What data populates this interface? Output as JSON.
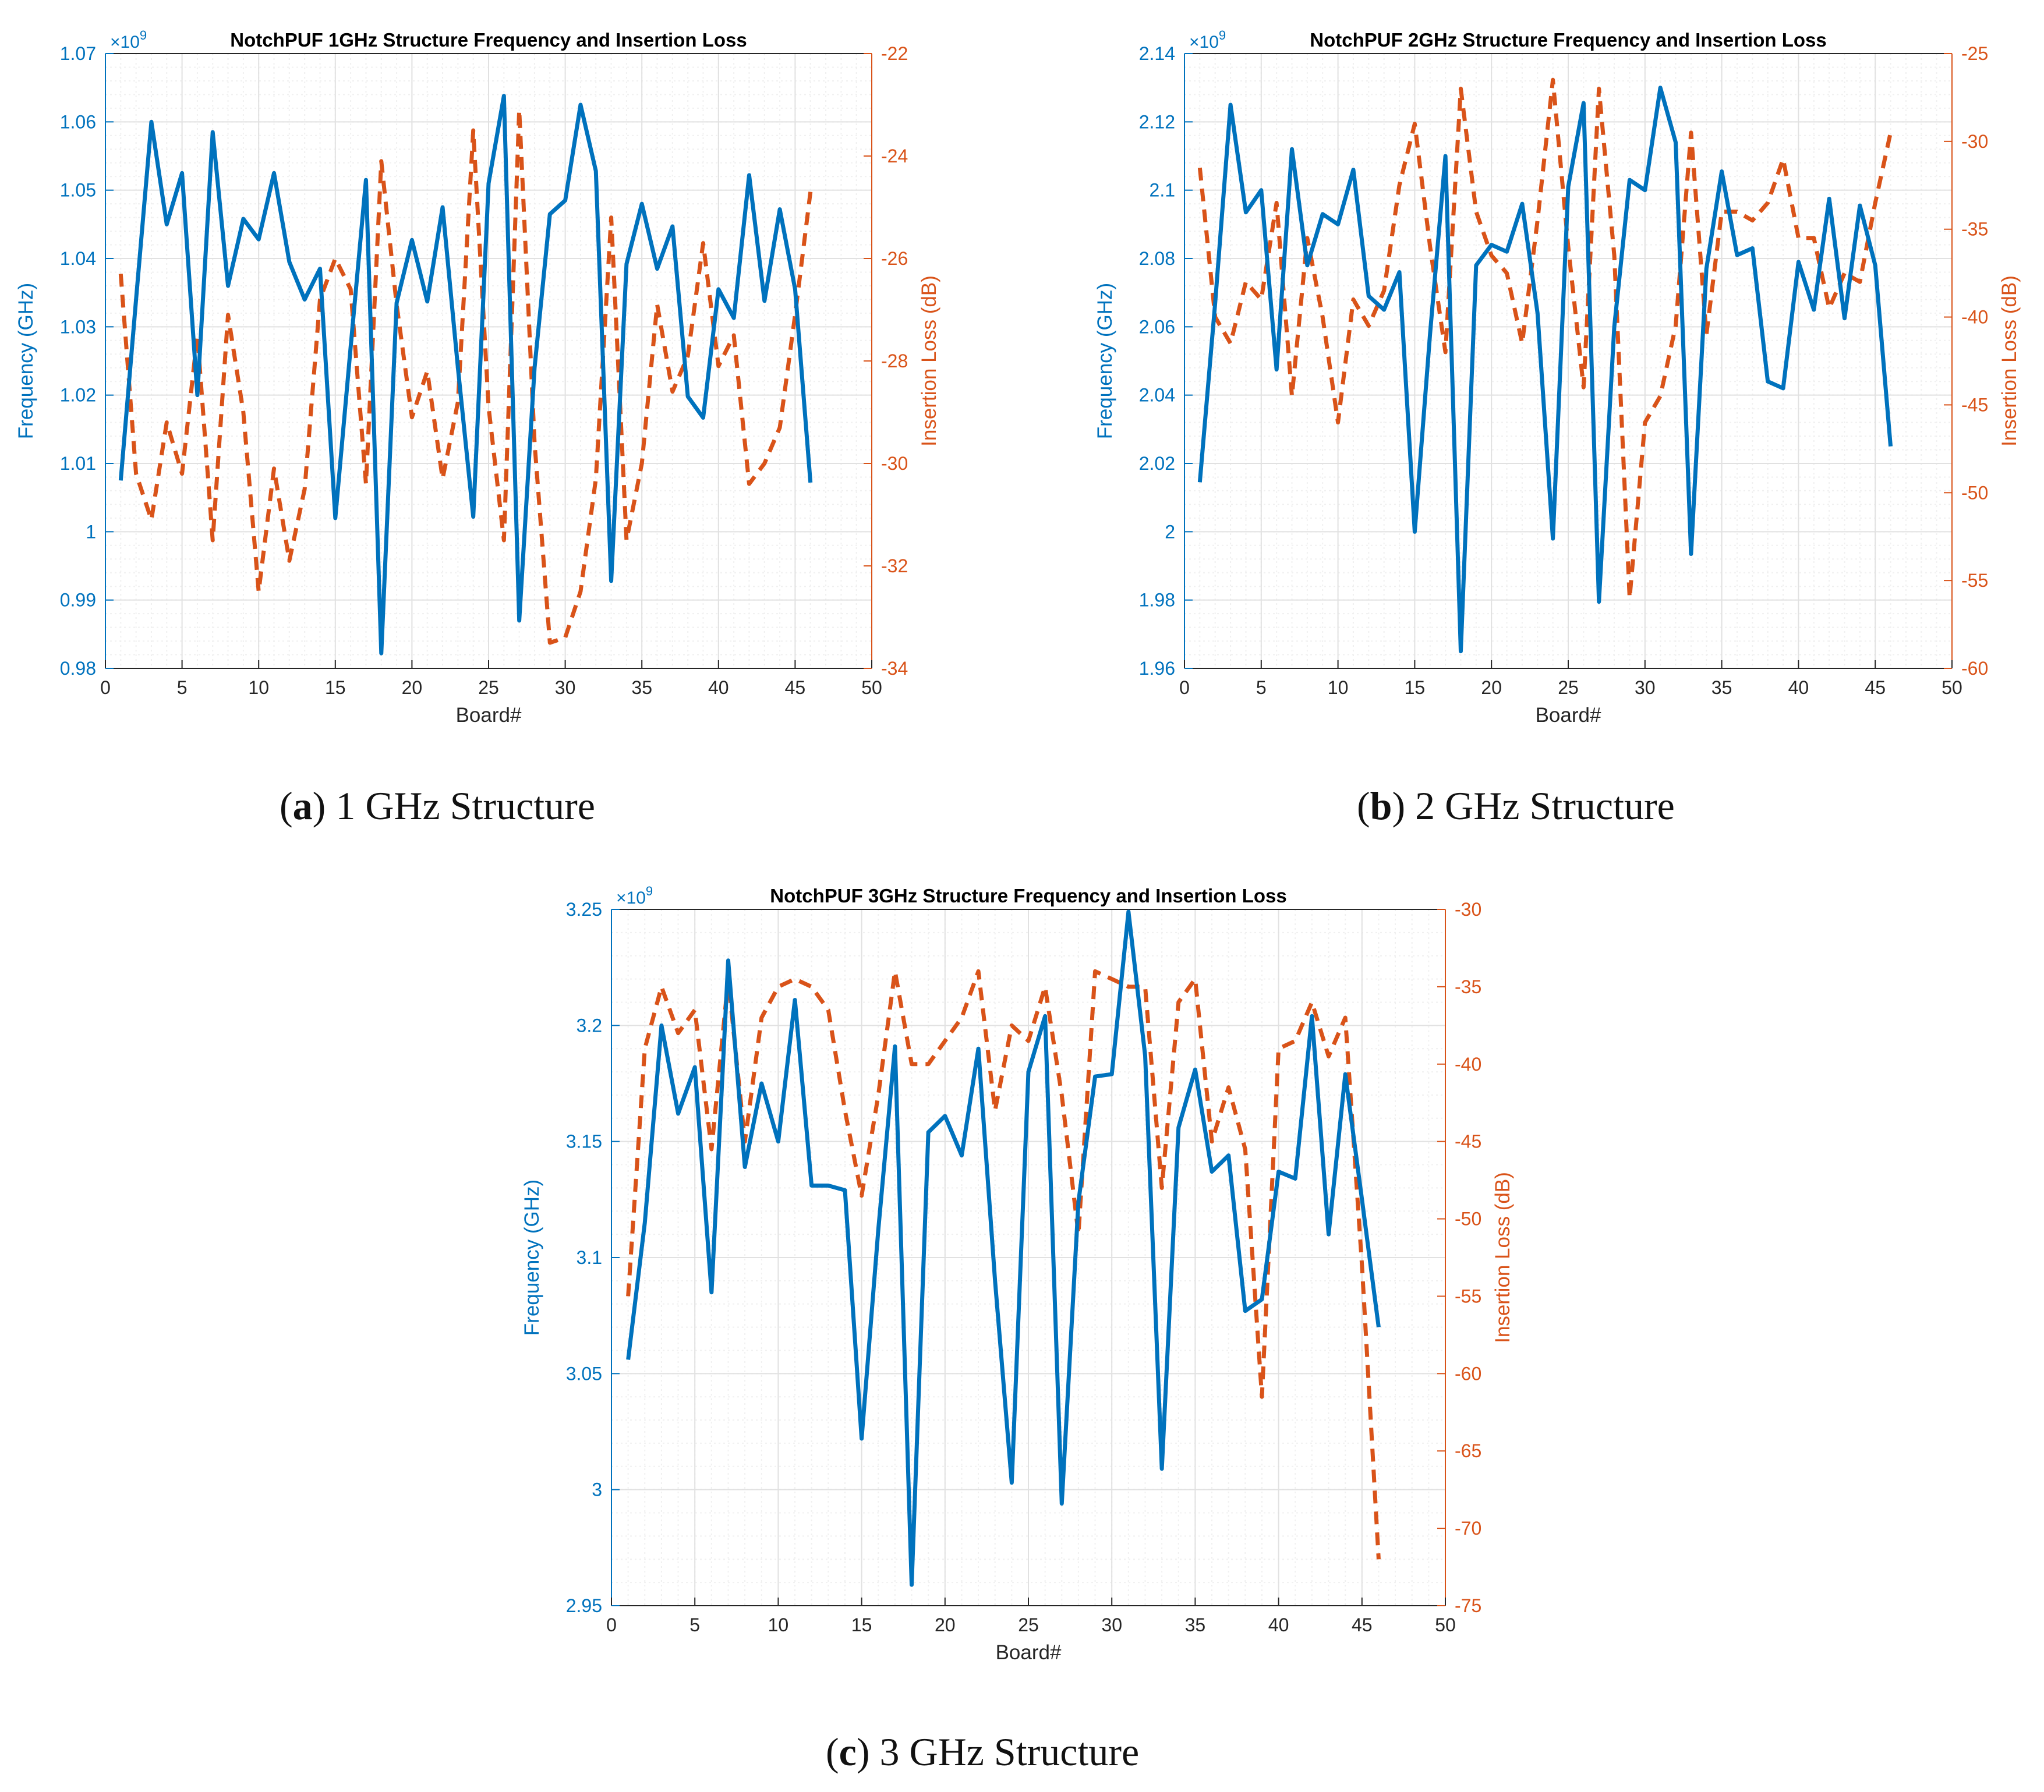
{
  "colors": {
    "freq": "#0072BD",
    "loss": "#D95319",
    "axis": "#262626",
    "grid_major": "#e1e1e1",
    "grid_minor": "#f0f0f0"
  },
  "captions": [
    {
      "letter": "a",
      "text": " 1 GHz Structure",
      "open": "(",
      "close": ")"
    },
    {
      "letter": "b",
      "text": " 2 GHz Structure",
      "open": "(",
      "close": ")"
    },
    {
      "letter": "c",
      "text": " 3 GHz Structure",
      "open": "(",
      "close": ")"
    }
  ],
  "chart_data": [
    {
      "type": "line",
      "title": "NotchPUF 1GHz Structure Frequency and Insertion Loss",
      "xlabel": "Board#",
      "ylabel": "Frequency (GHz)",
      "ylabel_right": "Insertion Loss (dB)",
      "exponent_label": "×10",
      "exponent_power": "9",
      "xlim": [
        0,
        50
      ],
      "ylim": [
        0.98,
        1.07
      ],
      "ylim_right": [
        -34,
        -22
      ],
      "xticks": [
        0,
        5,
        10,
        15,
        20,
        25,
        30,
        35,
        40,
        45,
        50
      ],
      "xtick_labels": [
        "0",
        "5",
        "10",
        "15",
        "20",
        "25",
        "30",
        "35",
        "40",
        "45",
        "50"
      ],
      "yticks": [
        0.98,
        0.99,
        1.0,
        1.01,
        1.02,
        1.03,
        1.04,
        1.05,
        1.06,
        1.07
      ],
      "ytick_labels": [
        "0.98",
        "0.99",
        "1",
        "1.01",
        "1.02",
        "1.03",
        "1.04",
        "1.05",
        "1.06",
        "1.07"
      ],
      "yticks_right": [
        -34,
        -32,
        -30,
        -28,
        -26,
        -24,
        -22
      ],
      "ytick_labels_right": [
        "-34",
        "-32",
        "-30",
        "-28",
        "-26",
        "-24",
        "-22"
      ],
      "x": [
        1,
        2,
        3,
        4,
        5,
        6,
        7,
        8,
        9,
        10,
        11,
        12,
        13,
        14,
        15,
        16,
        17,
        18,
        19,
        20,
        21,
        22,
        23,
        24,
        25,
        26,
        27,
        28,
        29,
        30,
        31,
        32,
        33,
        34,
        35,
        36,
        37,
        38,
        39,
        40,
        41,
        42,
        43,
        44,
        45,
        46
      ],
      "series": [
        {
          "name": "Frequency",
          "axis": "left",
          "style": "solid",
          "values": [
            1.0075,
            1.034,
            1.06,
            1.045,
            1.0525,
            1.02,
            1.0585,
            1.036,
            1.0458,
            1.0428,
            1.0525,
            1.0395,
            1.034,
            1.0385,
            1.002,
            1.027,
            1.0515,
            0.9822,
            1.0335,
            1.0427,
            1.0337,
            1.0475,
            1.024,
            1.0022,
            1.051,
            1.0638,
            0.987,
            1.024,
            1.0465,
            1.0485,
            1.0625,
            1.0528,
            0.9928,
            1.0392,
            1.048,
            1.0385,
            1.0447,
            1.0198,
            1.0167,
            1.0355,
            1.0313,
            1.0522,
            1.0338,
            1.0472,
            1.0355,
            1.0072
          ]
        },
        {
          "name": "Insertion Loss",
          "axis": "right",
          "style": "dashed",
          "values": [
            -26.3,
            -30.2,
            -31.1,
            -29.2,
            -30.2,
            -27.5,
            -31.5,
            -27.1,
            -29.0,
            -32.5,
            -30.1,
            -31.9,
            -30.5,
            -26.8,
            -26.0,
            -26.6,
            -30.4,
            -24.1,
            -26.9,
            -29.1,
            -28.2,
            -30.3,
            -28.8,
            -23.5,
            -28.9,
            -31.5,
            -23.1,
            -29.6,
            -33.5,
            -33.4,
            -32.5,
            -30.3,
            -25.2,
            -31.5,
            -30.0,
            -26.9,
            -28.6,
            -27.9,
            -25.7,
            -28.1,
            -27.5,
            -30.4,
            -30.0,
            -29.3,
            -27.1,
            -24.7
          ]
        }
      ]
    },
    {
      "type": "line",
      "title": "NotchPUF 2GHz Structure Frequency and Insertion Loss",
      "xlabel": "Board#",
      "ylabel": "Frequency (GHz)",
      "ylabel_right": "Insertion Loss (dB)",
      "exponent_label": "×10",
      "exponent_power": "9",
      "xlim": [
        0,
        50
      ],
      "ylim": [
        1.96,
        2.14
      ],
      "ylim_right": [
        -60,
        -25
      ],
      "xticks": [
        0,
        5,
        10,
        15,
        20,
        25,
        30,
        35,
        40,
        45,
        50
      ],
      "xtick_labels": [
        "0",
        "5",
        "10",
        "15",
        "20",
        "25",
        "30",
        "35",
        "40",
        "45",
        "50"
      ],
      "yticks": [
        1.96,
        1.98,
        2.0,
        2.02,
        2.04,
        2.06,
        2.08,
        2.1,
        2.12,
        2.14
      ],
      "ytick_labels": [
        "1.96",
        "1.98",
        "2",
        "2.02",
        "2.04",
        "2.06",
        "2.08",
        "2.1",
        "2.12",
        "2.14"
      ],
      "yticks_right": [
        -60,
        -55,
        -50,
        -45,
        -40,
        -35,
        -30,
        -25
      ],
      "ytick_labels_right": [
        "-60",
        "-55",
        "-50",
        "-45",
        "-40",
        "-35",
        "-30",
        "-25"
      ],
      "x": [
        1,
        2,
        3,
        4,
        5,
        6,
        7,
        8,
        9,
        10,
        11,
        12,
        13,
        14,
        15,
        16,
        17,
        18,
        19,
        20,
        21,
        22,
        23,
        24,
        25,
        26,
        27,
        28,
        29,
        30,
        31,
        32,
        33,
        34,
        35,
        36,
        37,
        38,
        39,
        40,
        41,
        42,
        43,
        44,
        45,
        46
      ],
      "series": [
        {
          "name": "Frequency",
          "axis": "left",
          "style": "solid",
          "values": [
            2.0145,
            2.067,
            2.125,
            2.0935,
            2.1,
            2.0475,
            2.112,
            2.078,
            2.093,
            2.09,
            2.106,
            2.069,
            2.065,
            2.076,
            2.0,
            2.058,
            2.11,
            1.965,
            2.078,
            2.084,
            2.082,
            2.096,
            2.064,
            1.998,
            2.101,
            2.1255,
            1.9795,
            2.06,
            2.103,
            2.1,
            2.13,
            2.114,
            1.9935,
            2.077,
            2.1055,
            2.081,
            2.083,
            2.044,
            2.042,
            2.079,
            2.065,
            2.0975,
            2.0625,
            2.0955,
            2.078,
            2.025
          ]
        },
        {
          "name": "Insertion Loss",
          "axis": "right",
          "style": "dashed",
          "values": [
            -31.5,
            -40.0,
            -41.5,
            -38.0,
            -39.0,
            -33.5,
            -44.5,
            -35.5,
            -40.0,
            -46.0,
            -39.0,
            -40.5,
            -38.5,
            -32.5,
            -29.0,
            -36.0,
            -42.0,
            -27.0,
            -34.0,
            -36.5,
            -37.5,
            -41.5,
            -34.5,
            -26.5,
            -36.0,
            -44.0,
            -27.0,
            -36.5,
            -56.0,
            -46.0,
            -44.5,
            -40.5,
            -29.5,
            -41.0,
            -34.0,
            -34.0,
            -34.5,
            -33.5,
            -31.0,
            -35.5,
            -35.5,
            -39.5,
            -37.5,
            -38.0,
            -33.5,
            -29.5
          ]
        }
      ]
    },
    {
      "type": "line",
      "title": "NotchPUF 3GHz Structure Frequency and Insertion Loss",
      "xlabel": "Board#",
      "ylabel": "Frequency (GHz)",
      "ylabel_right": "Insertion Loss (dB)",
      "exponent_label": "×10",
      "exponent_power": "9",
      "xlim": [
        0,
        50
      ],
      "ylim": [
        2.95,
        3.25
      ],
      "ylim_right": [
        -75,
        -30
      ],
      "xticks": [
        0,
        5,
        10,
        15,
        20,
        25,
        30,
        35,
        40,
        45,
        50
      ],
      "xtick_labels": [
        "0",
        "5",
        "10",
        "15",
        "20",
        "25",
        "30",
        "35",
        "40",
        "45",
        "50"
      ],
      "yticks": [
        2.95,
        3.0,
        3.05,
        3.1,
        3.15,
        3.2,
        3.25
      ],
      "ytick_labels": [
        "2.95",
        "3",
        "3.05",
        "3.1",
        "3.15",
        "3.2",
        "3.25"
      ],
      "yticks_right": [
        -75,
        -70,
        -65,
        -60,
        -55,
        -50,
        -45,
        -40,
        -35,
        -30
      ],
      "ytick_labels_right": [
        "-75",
        "-70",
        "-65",
        "-60",
        "-55",
        "-50",
        "-45",
        "-40",
        "-35",
        "-30"
      ],
      "x": [
        1,
        2,
        3,
        4,
        5,
        6,
        7,
        8,
        9,
        10,
        11,
        12,
        13,
        14,
        15,
        16,
        17,
        18,
        19,
        20,
        21,
        22,
        23,
        24,
        25,
        26,
        27,
        28,
        29,
        30,
        31,
        32,
        33,
        34,
        35,
        36,
        37,
        38,
        39,
        40,
        41,
        42,
        43,
        44,
        45,
        46
      ],
      "series": [
        {
          "name": "Frequency",
          "axis": "left",
          "style": "solid",
          "values": [
            3.056,
            3.115,
            3.2,
            3.162,
            3.182,
            3.085,
            3.228,
            3.139,
            3.175,
            3.15,
            3.211,
            3.131,
            3.131,
            3.129,
            3.022,
            3.112,
            3.191,
            2.959,
            3.154,
            3.161,
            3.144,
            3.19,
            3.09,
            3.003,
            3.18,
            3.204,
            2.994,
            3.124,
            3.178,
            3.179,
            3.249,
            3.187,
            3.009,
            3.156,
            3.181,
            3.137,
            3.144,
            3.077,
            3.082,
            3.137,
            3.134,
            3.204,
            3.11,
            3.179,
            3.125,
            3.07
          ]
        },
        {
          "name": "Insertion Loss",
          "axis": "right",
          "style": "dashed",
          "values": [
            -55.0,
            -39.0,
            -35.0,
            -38.0,
            -36.5,
            -45.5,
            -34.5,
            -45.0,
            -37.0,
            -35.0,
            -34.5,
            -35.0,
            -36.5,
            -43.0,
            -48.5,
            -42.0,
            -34.0,
            -40.0,
            -40.0,
            -38.5,
            -37.0,
            -34.0,
            -43.0,
            -37.5,
            -38.5,
            -35.0,
            -42.0,
            -51.0,
            -34.0,
            -34.5,
            -35.0,
            -35.0,
            -48.0,
            -36.0,
            -34.5,
            -45.0,
            -41.5,
            -45.5,
            -61.5,
            -39.0,
            -38.5,
            -36.0,
            -39.5,
            -37.0,
            -53.0,
            -72.0
          ]
        }
      ]
    }
  ]
}
